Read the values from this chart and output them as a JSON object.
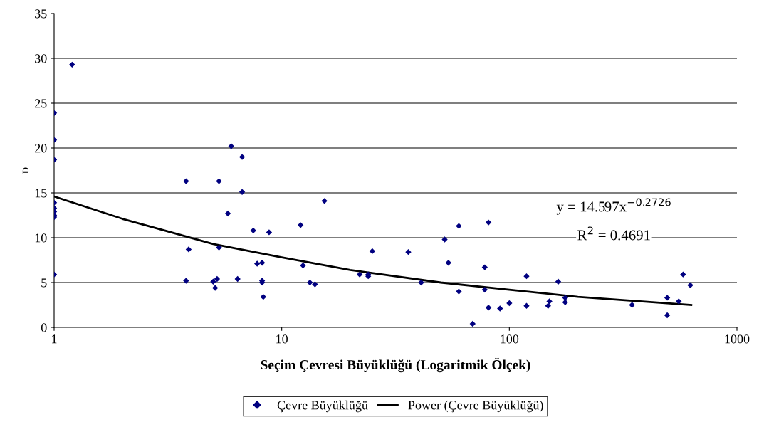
{
  "chart_data": {
    "type": "scatter",
    "xlabel": "Seçim Çevresi Büyüklüğü (Logaritmik Ölçek)",
    "ylabel": "D",
    "log": "x",
    "grid": "y",
    "legend": "bottom",
    "xlim": [
      1,
      1000
    ],
    "xticks": [
      1,
      10,
      100,
      1000
    ],
    "ylim": [
      0,
      35
    ],
    "yticks": [
      0,
      5,
      10,
      15,
      20,
      25,
      30,
      35
    ],
    "annotations": [
      "y = 14.597x$^{−0.2726}$",
      "R$^{2}$ = 0.4691"
    ],
    "series": [
      {
        "name": "Çevre Büyüklüğü",
        "marker": "diamond",
        "color": "#000080",
        "x": [
          1,
          1,
          1,
          1,
          1,
          1,
          1,
          1,
          1,
          1.2,
          3.8,
          3.9,
          3.8,
          6.0,
          6.7,
          5.3,
          6.7,
          5.8,
          7.5,
          8.8,
          5.3,
          7.8,
          8.2,
          5.0,
          5.2,
          5.1,
          6.4,
          8.2,
          8.2,
          8.3,
          12.1,
          12.4,
          13.3,
          14,
          15.4,
          22,
          24,
          24,
          25,
          36,
          41,
          52,
          54,
          60,
          60,
          69,
          78,
          78,
          81,
          81,
          91,
          100,
          119,
          119,
          148,
          150,
          164,
          176,
          176,
          346,
          494,
          494,
          555,
          580,
          624
        ],
        "values": [
          23.9,
          20.9,
          18.7,
          13.9,
          13.3,
          12.9,
          12.5,
          12.3,
          5.9,
          29.3,
          16.3,
          8.7,
          5.2,
          20.2,
          19.0,
          16.3,
          15.1,
          12.7,
          10.8,
          10.6,
          8.9,
          7.1,
          7.2,
          5.1,
          5.4,
          4.4,
          5.4,
          5.2,
          5.0,
          3.4,
          11.4,
          6.9,
          5.0,
          4.8,
          14.1,
          5.9,
          5.9,
          5.7,
          8.5,
          8.4,
          5.0,
          9.8,
          7.2,
          11.3,
          4.0,
          0.4,
          6.7,
          4.2,
          11.7,
          2.2,
          2.1,
          2.7,
          5.7,
          2.4,
          2.4,
          2.9,
          5.1,
          3.3,
          2.8,
          2.5,
          3.3,
          1.35,
          2.9,
          5.9,
          4.7
        ]
      },
      {
        "name": "Power (Çevre Büyüklüğü)",
        "type": "line",
        "marker": "none",
        "line_style": "solid",
        "color": "#000000",
        "x": [
          1,
          2,
          5,
          10,
          20,
          50,
          100,
          200,
          630
        ],
        "values": [
          14.6,
          12.1,
          9.3,
          7.8,
          6.4,
          5.0,
          4.2,
          3.4,
          2.5
        ]
      }
    ]
  }
}
